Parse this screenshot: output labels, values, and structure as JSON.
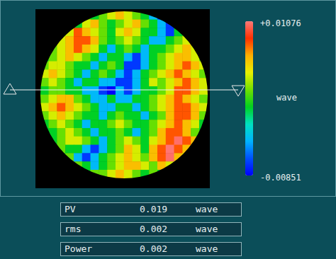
{
  "chart_data": {
    "type": "heatmap",
    "tick_labels": false,
    "cells": [
      [
        null,
        null,
        null,
        null,
        null,
        0.002,
        0,
        0.002,
        0.004,
        0.006,
        0.004,
        0.002,
        0,
        -0.004,
        -0.007,
        null,
        null,
        null,
        null,
        null
      ],
      [
        null,
        null,
        null,
        null,
        0,
        0.004,
        0.006,
        0.002,
        0,
        0.002,
        0.004,
        0.006,
        0.002,
        0,
        -0.004,
        -0.007,
        null,
        null,
        null,
        null
      ],
      [
        null,
        null,
        0.002,
        0.004,
        0.008,
        0.006,
        0.004,
        0.002,
        0,
        0.004,
        0.006,
        0.004,
        0,
        0,
        -0.004,
        -0.007,
        0,
        0.002,
        null,
        null
      ],
      [
        null,
        null,
        0.004,
        0.006,
        0.008,
        0.008,
        0.006,
        0.002,
        0,
        0.002,
        0.004,
        0.002,
        0,
        -0.004,
        -0.004,
        0,
        0.002,
        0.004,
        null,
        null
      ],
      [
        null,
        0.002,
        0.004,
        0.006,
        0.008,
        0.006,
        0.004,
        0,
        -0.004,
        0,
        0.002,
        0,
        -0.004,
        0,
        0,
        0.002,
        0.004,
        0.006,
        0.004,
        null
      ],
      [
        0,
        0.002,
        0.004,
        0.006,
        0.004,
        0.002,
        0,
        -0.004,
        0,
        0,
        -0.004,
        -0.007,
        -0.004,
        0,
        0.002,
        0.004,
        0.006,
        0.006,
        0.004,
        0.002
      ],
      [
        0.002,
        0.004,
        0.004,
        0.002,
        0,
        0,
        -0.004,
        0,
        0.002,
        0,
        -0.007,
        -0.007,
        -0.004,
        0,
        0.002,
        0.004,
        0.006,
        0.008,
        0.006,
        0.004
      ],
      [
        0.004,
        0.006,
        0.004,
        0.002,
        0,
        -0.004,
        0,
        0.002,
        0,
        -0.004,
        -0.007,
        -0.004,
        0,
        0.002,
        0.004,
        0.006,
        0.008,
        0.006,
        0.004,
        0.002
      ],
      [
        0.002,
        0.004,
        0.002,
        0,
        -0.004,
        0,
        0,
        -0.004,
        -0.004,
        -0.007,
        -0.007,
        -0.004,
        0,
        0.004,
        0.002,
        0.004,
        0.006,
        0.008,
        0.006,
        0.004
      ],
      [
        0,
        0.002,
        0.002,
        0,
        0,
        -0.004,
        -0.004,
        -0.007,
        -0.0085,
        -0.004,
        -0.007,
        -0.004,
        0,
        0,
        0.002,
        0.004,
        0.008,
        0.008,
        0.006,
        0.004
      ],
      [
        0.002,
        0.004,
        0.006,
        0.006,
        0.002,
        0,
        -0.004,
        -0.004,
        0,
        -0.004,
        -0.004,
        0,
        0,
        0.002,
        0.004,
        0.006,
        0.008,
        0.006,
        0.004,
        0.002
      ],
      [
        0.004,
        0.006,
        0.008,
        0.006,
        0.004,
        0.002,
        0,
        -0.004,
        -0.004,
        0,
        0,
        -0.004,
        0,
        0.002,
        0.004,
        0.006,
        0.008,
        0.008,
        0.006,
        0.004
      ],
      [
        0.002,
        0.004,
        0.006,
        0.004,
        0.002,
        0,
        0,
        -0.004,
        0,
        0.002,
        0,
        0,
        -0.004,
        0,
        0.002,
        0.006,
        0.008,
        0.008,
        0.006,
        0.002
      ],
      [
        0,
        0.002,
        0.004,
        0.002,
        0,
        -0.004,
        0,
        0,
        0.002,
        0.004,
        0.002,
        0,
        0,
        0.002,
        0.004,
        0.006,
        0.008,
        0.006,
        0.004,
        0
      ],
      [
        0,
        0,
        0.002,
        0.004,
        0.002,
        0,
        -0.004,
        0,
        0,
        0.002,
        0,
        -0.004,
        0,
        0.002,
        0.006,
        0.008,
        0.008,
        0.006,
        0.002,
        0
      ],
      [
        null,
        0,
        0.002,
        0.004,
        0.004,
        0.002,
        0,
        -0.004,
        0,
        0.002,
        0.004,
        0.002,
        0,
        0.004,
        0.006,
        0.008,
        0.0105,
        0.008,
        0.006,
        null
      ],
      [
        null,
        null,
        0.002,
        0,
        0,
        -0.004,
        -0.007,
        -0.004,
        0,
        0.002,
        0.006,
        0.004,
        0,
        0.006,
        0.008,
        0.0107,
        0.008,
        0.006,
        null,
        null
      ],
      [
        null,
        null,
        0,
        0.002,
        -0.004,
        -0.007,
        -0.004,
        0,
        0.002,
        0.004,
        0.006,
        0.004,
        0.002,
        0.006,
        0.008,
        0.0105,
        0.006,
        0.004,
        null,
        null
      ],
      [
        null,
        null,
        null,
        null,
        0.002,
        0,
        -0.004,
        0,
        0.002,
        0.004,
        0.006,
        0.006,
        0.004,
        0.002,
        0.006,
        0.004,
        null,
        null,
        null,
        null
      ],
      [
        null,
        null,
        null,
        null,
        null,
        0,
        0.002,
        0.002,
        0.004,
        0.006,
        0.004,
        0.002,
        0,
        0.002,
        0,
        null,
        null,
        null,
        null,
        null
      ]
    ],
    "colorbar": {
      "label": "wave",
      "range": [
        -0.00851,
        0.01076
      ],
      "ticks": [
        -0.00851,
        {
          "value": 0.01076,
          "label": "+0.01076"
        }
      ]
    }
  },
  "readouts": [
    {
      "label": "PV",
      "value": 0.019,
      "unit": "wave"
    },
    {
      "label": "rms",
      "value": 0.002,
      "unit": "wave"
    },
    {
      "label": "Power",
      "value": 0.002,
      "unit": "wave"
    }
  ]
}
